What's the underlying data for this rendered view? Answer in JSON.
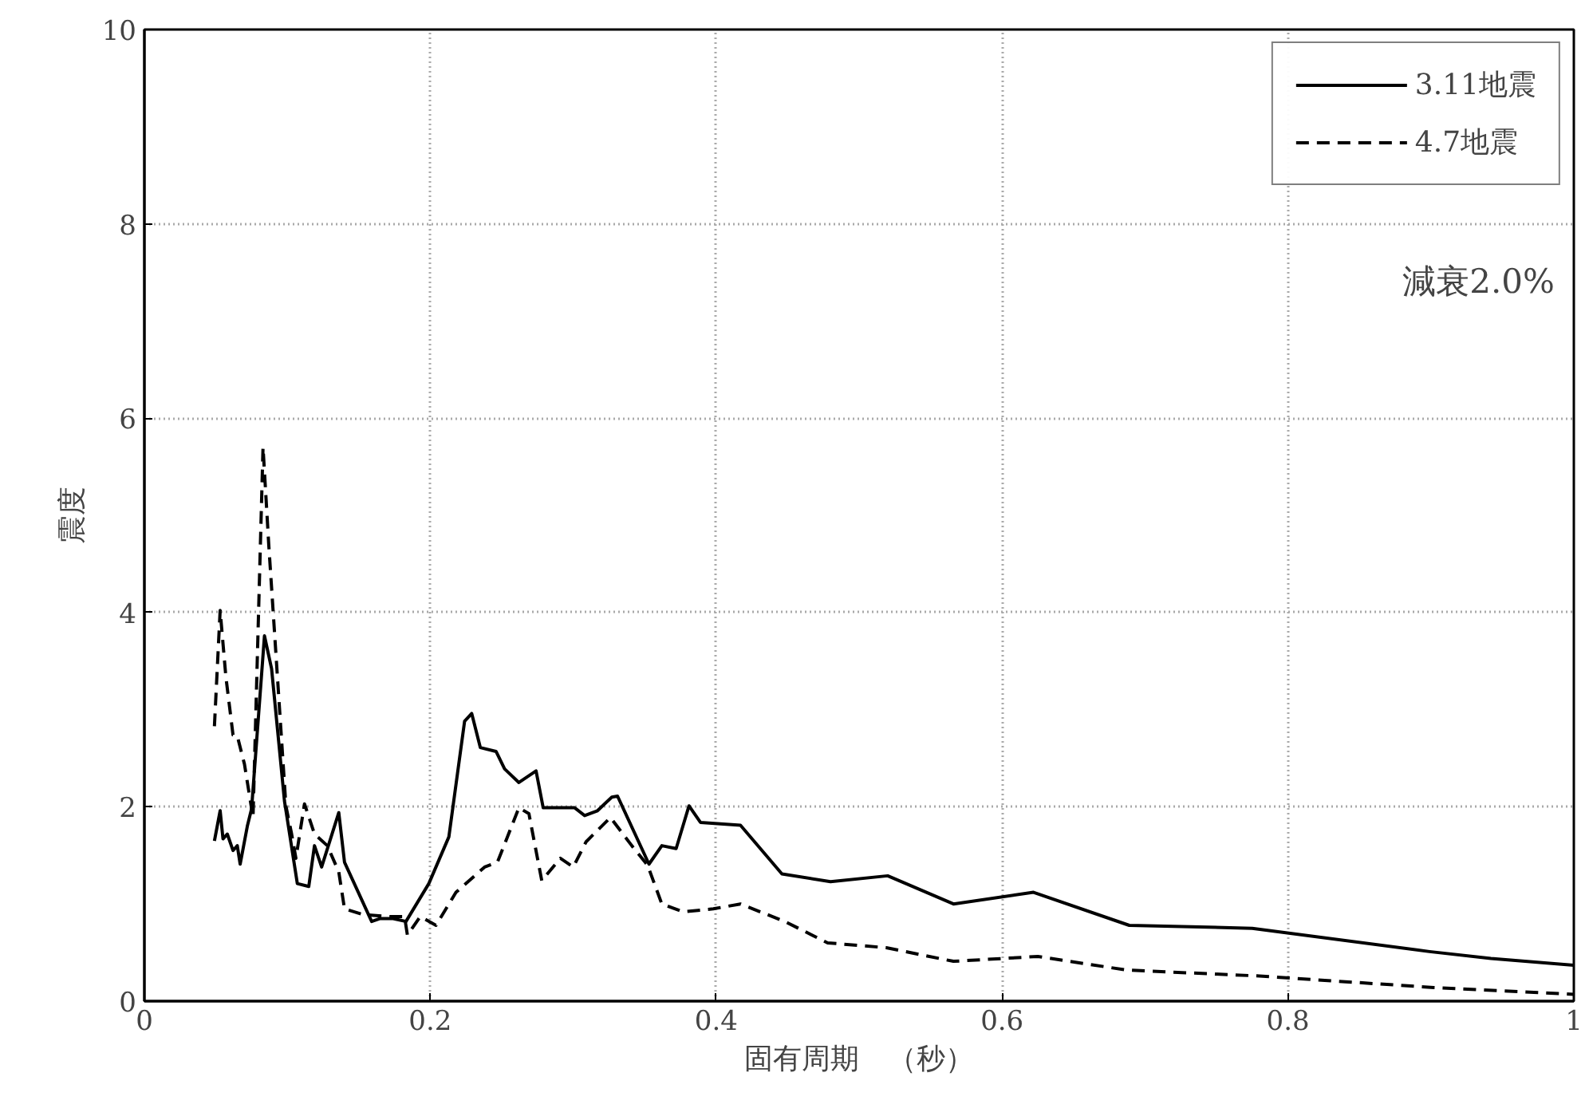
{
  "chart_data": {
    "type": "line",
    "xlabel": "固有周期　（秒）",
    "ylabel": "震度",
    "xlim": [
      0,
      1
    ],
    "ylim": [
      0,
      10
    ],
    "xticks": [
      0,
      0.2,
      0.4,
      0.6,
      0.8,
      1
    ],
    "yticks": [
      0,
      2,
      4,
      6,
      8,
      10
    ],
    "grid": true,
    "legend": "top right",
    "marker": "none",
    "annotations": [
      "減衰2.0%"
    ],
    "series": [
      {
        "name": "3.11地震",
        "color": "#000000",
        "line_style": "solid",
        "x": [
          0.049,
          0.053,
          0.055,
          0.058,
          0.062,
          0.065,
          0.067,
          0.072,
          0.075,
          0.084,
          0.089,
          0.098,
          0.107,
          0.115,
          0.119,
          0.124,
          0.136,
          0.14,
          0.159,
          0.165,
          0.174,
          0.183,
          0.199,
          0.213,
          0.224,
          0.229,
          0.235,
          0.246,
          0.252,
          0.262,
          0.274,
          0.279,
          0.301,
          0.308,
          0.317,
          0.327,
          0.331,
          0.353,
          0.362,
          0.372,
          0.381,
          0.389,
          0.417,
          0.446,
          0.48,
          0.52,
          0.566,
          0.622,
          0.689,
          0.775,
          0.899,
          0.942,
          1.0
        ],
        "values": [
          1.65,
          1.96,
          1.67,
          1.72,
          1.55,
          1.6,
          1.41,
          1.8,
          1.98,
          3.76,
          3.42,
          2.06,
          1.21,
          1.18,
          1.6,
          1.38,
          1.94,
          1.43,
          0.82,
          0.85,
          0.85,
          0.82,
          1.21,
          1.69,
          2.88,
          2.96,
          2.61,
          2.57,
          2.39,
          2.25,
          2.37,
          1.99,
          1.99,
          1.91,
          1.96,
          2.1,
          2.11,
          1.41,
          1.6,
          1.57,
          2.01,
          1.84,
          1.81,
          1.31,
          1.23,
          1.29,
          1.0,
          1.12,
          0.78,
          0.75,
          0.51,
          0.44,
          0.37
        ]
      },
      {
        "name": "4.7地震",
        "color": "#000000",
        "line_style": "dashed",
        "x": [
          0.049,
          0.053,
          0.057,
          0.062,
          0.065,
          0.07,
          0.076,
          0.083,
          0.087,
          0.099,
          0.103,
          0.106,
          0.112,
          0.119,
          0.128,
          0.136,
          0.14,
          0.153,
          0.172,
          0.182,
          0.184,
          0.193,
          0.204,
          0.218,
          0.238,
          0.247,
          0.262,
          0.269,
          0.278,
          0.291,
          0.3,
          0.309,
          0.326,
          0.341,
          0.352,
          0.362,
          0.377,
          0.398,
          0.417,
          0.448,
          0.478,
          0.519,
          0.566,
          0.625,
          0.687,
          0.778,
          0.902,
          1.0
        ],
        "values": [
          2.83,
          4.02,
          3.34,
          2.74,
          2.73,
          2.44,
          1.89,
          5.7,
          4.7,
          2.01,
          1.72,
          1.47,
          2.03,
          1.72,
          1.6,
          1.33,
          0.95,
          0.89,
          0.87,
          0.87,
          0.68,
          0.87,
          0.78,
          1.12,
          1.38,
          1.43,
          1.99,
          1.93,
          1.24,
          1.47,
          1.38,
          1.64,
          1.89,
          1.6,
          1.4,
          1.0,
          0.92,
          0.95,
          1.0,
          0.82,
          0.6,
          0.55,
          0.41,
          0.46,
          0.32,
          0.26,
          0.14,
          0.07
        ]
      }
    ]
  }
}
